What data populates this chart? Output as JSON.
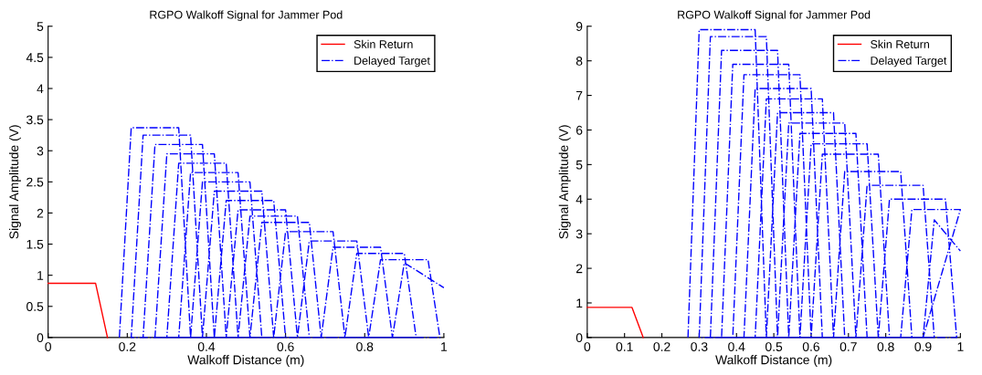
{
  "chart_data": [
    {
      "type": "line",
      "title": "RGPO Walkoff Signal for Jammer Pod",
      "xlabel": "Walkoff Distance (m)",
      "ylabel": "Signal Amplitude (V)",
      "xlim": [
        0,
        1
      ],
      "ylim": [
        0,
        5
      ],
      "xticks": [
        0,
        0.2,
        0.4,
        0.6,
        0.8,
        1
      ],
      "yticks": [
        0,
        0.5,
        1,
        1.5,
        2,
        2.5,
        3,
        3.5,
        4,
        4.5,
        5
      ],
      "grid": false,
      "legend": "top right",
      "series": [
        {
          "name": "Skin Return",
          "color": "#ff0000",
          "line_style": "solid",
          "x": [
            0,
            0.12,
            0.15
          ],
          "values": [
            0.87,
            0.87,
            0
          ]
        },
        {
          "name": "Delayed Target",
          "color": "#0000ff",
          "line_style": "dashdot",
          "x": [
            0.18,
            0.21,
            0.33,
            0.36,
            0.21,
            0.24,
            0.36,
            0.39,
            0.24,
            0.27,
            0.39,
            0.42,
            0.27,
            0.3,
            0.42,
            0.45,
            0.3,
            0.33,
            0.45,
            0.48,
            0.33,
            0.36,
            0.48,
            0.51,
            0.36,
            0.39,
            0.51,
            0.54,
            0.39,
            0.42,
            0.54,
            0.57,
            0.42,
            0.45,
            0.57,
            0.6,
            0.45,
            0.48,
            0.6,
            0.63,
            0.48,
            0.51,
            0.63,
            0.66,
            0.51,
            0.54,
            0.66,
            0.69,
            0.57,
            0.6,
            0.72,
            0.75,
            0.63,
            0.66,
            0.78,
            0.81,
            0.69,
            0.72,
            0.84,
            0.87,
            0.75,
            0.78,
            0.9,
            0.93,
            0.81,
            0.84,
            0.96,
            0.99,
            0.87,
            0.9,
            1.0
          ],
          "values": [
            0,
            3.37,
            3.37,
            0,
            0,
            3.25,
            3.25,
            0,
            0,
            3.1,
            3.1,
            0,
            0,
            2.95,
            2.95,
            0,
            0,
            2.8,
            2.8,
            0,
            0,
            2.65,
            2.65,
            0,
            0,
            2.5,
            2.5,
            0,
            0,
            2.35,
            2.35,
            0,
            0,
            2.2,
            2.2,
            0,
            0,
            2.05,
            2.05,
            0,
            0,
            1.95,
            1.95,
            0,
            0,
            1.85,
            1.85,
            0,
            0,
            1.7,
            1.7,
            0,
            0,
            1.55,
            1.55,
            0,
            0,
            1.45,
            1.45,
            0,
            0,
            1.35,
            1.35,
            0,
            0,
            1.25,
            1.25,
            0,
            0,
            1.2,
            0.8
          ]
        }
      ]
    },
    {
      "type": "line",
      "title": "RGPO Walkoff Signal for Jammer Pod",
      "xlabel": "Walkoff Distance (m)",
      "ylabel": "Signal Amplitude (V)",
      "xlim": [
        0,
        1
      ],
      "ylim": [
        0,
        9
      ],
      "xticks": [
        0,
        0.1,
        0.2,
        0.3,
        0.4,
        0.5,
        0.6,
        0.7,
        0.8,
        0.9,
        1
      ],
      "yticks": [
        0,
        1,
        2,
        3,
        4,
        5,
        6,
        7,
        8,
        9
      ],
      "grid": false,
      "legend": "top right",
      "series": [
        {
          "name": "Skin Return",
          "color": "#ff0000",
          "line_style": "solid",
          "x": [
            0,
            0.12,
            0.15
          ],
          "values": [
            0.87,
            0.87,
            0
          ]
        },
        {
          "name": "Delayed Target",
          "color": "#0000ff",
          "line_style": "dashdot",
          "x": [
            0.27,
            0.3,
            0.45,
            0.48,
            0.3,
            0.33,
            0.48,
            0.51,
            0.33,
            0.36,
            0.51,
            0.54,
            0.36,
            0.39,
            0.54,
            0.57,
            0.39,
            0.42,
            0.57,
            0.6,
            0.42,
            0.45,
            0.6,
            0.63,
            0.45,
            0.48,
            0.63,
            0.66,
            0.48,
            0.51,
            0.66,
            0.69,
            0.51,
            0.54,
            0.69,
            0.72,
            0.54,
            0.57,
            0.72,
            0.75,
            0.57,
            0.6,
            0.75,
            0.78,
            0.6,
            0.63,
            0.78,
            0.81,
            0.66,
            0.69,
            0.84,
            0.87,
            0.72,
            0.75,
            0.9,
            0.93,
            0.78,
            0.81,
            0.96,
            0.99,
            0.84,
            0.87,
            1.0,
            0.9,
            0.93,
            1.0
          ],
          "values": [
            0,
            8.9,
            8.9,
            0,
            0,
            8.7,
            8.7,
            0,
            0,
            8.3,
            8.3,
            0,
            0,
            7.9,
            7.9,
            0,
            0,
            7.6,
            7.6,
            0,
            0,
            7.2,
            7.2,
            0,
            0,
            6.9,
            6.9,
            0,
            0,
            6.5,
            6.5,
            0,
            0,
            6.2,
            6.2,
            0,
            0,
            5.9,
            5.9,
            0,
            0,
            5.6,
            5.6,
            0,
            0,
            5.3,
            5.3,
            0,
            0,
            4.8,
            4.8,
            0,
            0,
            4.4,
            4.4,
            0,
            0,
            4.0,
            4.0,
            0,
            0,
            3.7,
            3.7,
            0,
            3.4,
            2.5
          ]
        }
      ]
    }
  ]
}
